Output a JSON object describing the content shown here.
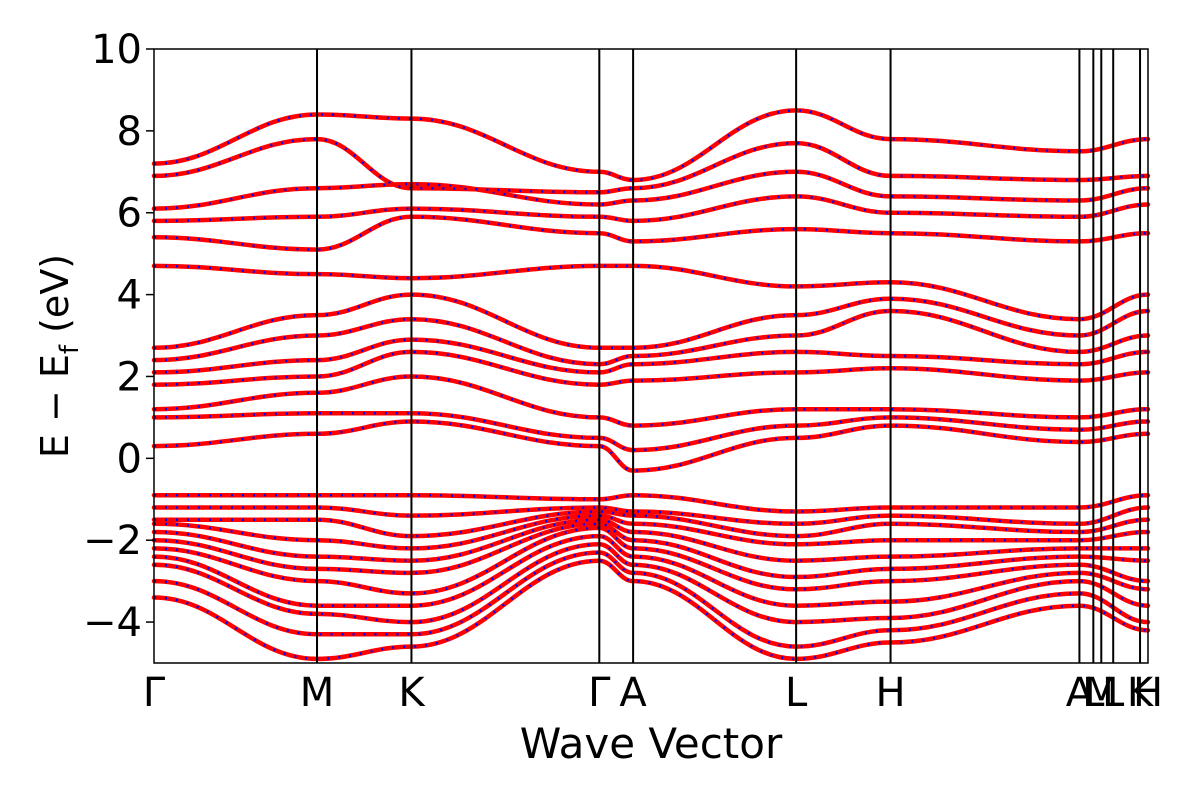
{
  "chart_data": {
    "type": "line",
    "title": "",
    "xlabel": "Wave Vector",
    "ylabel": "E − E_f (eV)",
    "ylabel_parts": {
      "base": "E − E",
      "sub": "f",
      "unit": " (eV)"
    },
    "ylim": [
      -5,
      10
    ],
    "y_ticks": [
      -4,
      -2,
      0,
      2,
      4,
      6,
      8,
      10
    ],
    "y_tick_labels": [
      "−4",
      "−2",
      "0",
      "2",
      "4",
      "6",
      "8",
      "10"
    ],
    "x_range": [
      0,
      1
    ],
    "kpath": [
      {
        "label": "Γ",
        "x": 0.0
      },
      {
        "label": "M",
        "x": 0.164
      },
      {
        "label": "K",
        "x": 0.259
      },
      {
        "label": "Γ",
        "x": 0.448
      },
      {
        "label": "A",
        "x": 0.482
      },
      {
        "label": "L",
        "x": 0.646
      },
      {
        "label": "H",
        "x": 0.741
      },
      {
        "label": "A",
        "x": 0.931
      },
      {
        "label": "L",
        "x": 0.945
      },
      {
        "label": "M",
        "x": 0.953
      },
      {
        "label": "L",
        "x": 0.965
      },
      {
        "label": "K",
        "x": 0.992
      },
      {
        "label": "H",
        "x": 1.0
      }
    ],
    "grid": false,
    "legend": false,
    "series_styles": [
      {
        "color": "#ff0000",
        "style": "solid"
      },
      {
        "color": "#0000ff",
        "style": "dotted"
      }
    ],
    "band_knots_x": [
      0.0,
      0.164,
      0.259,
      0.448,
      0.482,
      0.646,
      0.741,
      0.931,
      1.0
    ],
    "bands": [
      [
        -3.4,
        -4.9,
        -4.6,
        -2.5,
        -3.0,
        -4.9,
        -4.5,
        -3.6,
        -4.2
      ],
      [
        -3.0,
        -4.3,
        -4.3,
        -2.3,
        -2.8,
        -4.6,
        -4.2,
        -3.3,
        -4.0
      ],
      [
        -2.6,
        -3.8,
        -4.0,
        -2.1,
        -2.6,
        -4.0,
        -3.9,
        -3.0,
        -3.6
      ],
      [
        -2.4,
        -3.6,
        -3.6,
        -1.9,
        -2.4,
        -3.6,
        -3.5,
        -2.8,
        -3.2
      ],
      [
        -2.2,
        -3.0,
        -3.3,
        -1.7,
        -2.2,
        -3.2,
        -3.0,
        -2.6,
        -3.0
      ],
      [
        -2.0,
        -2.7,
        -2.8,
        -1.6,
        -2.0,
        -2.9,
        -2.7,
        -2.4,
        -2.5
      ],
      [
        -1.8,
        -2.4,
        -2.5,
        -1.5,
        -1.8,
        -2.5,
        -2.4,
        -2.2,
        -2.2
      ],
      [
        -1.6,
        -2.0,
        -2.2,
        -1.4,
        -1.6,
        -2.1,
        -2.0,
        -2.0,
        -1.8
      ],
      [
        -1.5,
        -1.5,
        -1.9,
        -1.3,
        -1.4,
        -1.9,
        -1.6,
        -1.8,
        -1.5
      ],
      [
        -1.2,
        -1.2,
        -1.4,
        -1.2,
        -1.3,
        -1.6,
        -1.4,
        -1.6,
        -1.2
      ],
      [
        -0.9,
        -0.9,
        -0.9,
        -1.0,
        -0.9,
        -1.3,
        -1.2,
        -1.2,
        -0.9
      ],
      [
        0.3,
        0.6,
        0.9,
        0.3,
        -0.3,
        0.5,
        0.8,
        0.4,
        0.6
      ],
      [
        1.0,
        1.1,
        1.1,
        0.5,
        0.2,
        0.8,
        1.0,
        0.7,
        0.9
      ],
      [
        1.2,
        1.6,
        2.0,
        1.0,
        0.8,
        1.2,
        1.2,
        1.0,
        1.2
      ],
      [
        1.8,
        2.0,
        2.6,
        1.8,
        1.9,
        2.1,
        2.2,
        1.9,
        2.1
      ],
      [
        2.1,
        2.4,
        2.9,
        2.1,
        2.3,
        2.6,
        2.5,
        2.3,
        2.6
      ],
      [
        2.4,
        3.0,
        3.4,
        2.3,
        2.5,
        3.0,
        3.6,
        2.6,
        3.0
      ],
      [
        2.7,
        3.5,
        4.0,
        2.7,
        2.7,
        3.5,
        3.9,
        3.0,
        3.6
      ],
      [
        4.7,
        4.5,
        4.4,
        4.7,
        4.7,
        4.2,
        4.3,
        3.4,
        4.0
      ],
      [
        5.4,
        5.1,
        5.9,
        5.5,
        5.3,
        5.6,
        5.5,
        5.3,
        5.5
      ],
      [
        5.8,
        5.9,
        6.1,
        5.9,
        5.8,
        6.4,
        6.0,
        5.9,
        6.2
      ],
      [
        6.1,
        6.6,
        6.7,
        6.2,
        6.3,
        7.0,
        6.4,
        6.3,
        6.6
      ],
      [
        6.9,
        7.8,
        6.6,
        6.5,
        6.6,
        7.7,
        6.9,
        6.8,
        6.9
      ],
      [
        7.2,
        8.4,
        8.3,
        7.0,
        6.8,
        8.5,
        7.8,
        7.5,
        7.8
      ]
    ]
  }
}
